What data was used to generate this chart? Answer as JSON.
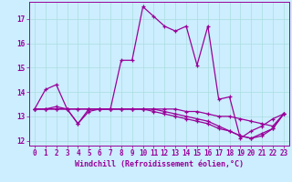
{
  "xlabel": "Windchill (Refroidissement éolien,°C)",
  "background_color": "#cceeff",
  "line_color": "#990099",
  "grid_color": "#aadddd",
  "xlim": [
    -0.5,
    23.5
  ],
  "ylim": [
    11.8,
    17.7
  ],
  "xticks": [
    0,
    1,
    2,
    3,
    4,
    5,
    6,
    7,
    8,
    9,
    10,
    11,
    12,
    13,
    14,
    15,
    16,
    17,
    18,
    19,
    20,
    21,
    22,
    23
  ],
  "yticks": [
    12,
    13,
    14,
    15,
    16,
    17
  ],
  "line1_x": [
    0,
    1,
    2,
    3,
    4,
    5,
    6,
    7,
    8,
    9,
    10,
    11,
    12,
    13,
    14,
    15,
    16,
    17,
    18,
    19,
    20,
    21,
    22,
    23
  ],
  "line1_y": [
    13.3,
    14.1,
    14.3,
    13.3,
    12.7,
    13.3,
    13.3,
    13.3,
    15.3,
    15.3,
    17.5,
    17.1,
    16.7,
    16.5,
    16.7,
    15.1,
    16.7,
    13.7,
    13.8,
    12.1,
    12.4,
    12.6,
    12.9,
    13.1
  ],
  "line2_x": [
    0,
    1,
    2,
    3,
    4,
    5,
    6,
    7,
    8,
    9,
    10,
    11,
    12,
    13,
    14,
    15,
    16,
    17,
    18,
    19,
    20,
    21,
    22,
    23
  ],
  "line2_y": [
    13.3,
    13.3,
    13.4,
    13.3,
    13.3,
    13.3,
    13.3,
    13.3,
    13.3,
    13.3,
    13.3,
    13.2,
    13.1,
    13.0,
    12.9,
    12.8,
    12.7,
    12.5,
    12.4,
    12.2,
    12.1,
    12.3,
    12.5,
    13.1
  ],
  "line3_x": [
    0,
    1,
    2,
    3,
    4,
    5,
    6,
    7,
    8,
    9,
    10,
    11,
    12,
    13,
    14,
    15,
    16,
    17,
    18,
    19,
    20,
    21,
    22,
    23
  ],
  "line3_y": [
    13.3,
    13.3,
    13.3,
    13.3,
    13.3,
    13.3,
    13.3,
    13.3,
    13.3,
    13.3,
    13.3,
    13.3,
    13.2,
    13.1,
    13.0,
    12.9,
    12.8,
    12.6,
    12.4,
    12.2,
    12.1,
    12.2,
    12.5,
    13.1
  ],
  "line4_x": [
    0,
    1,
    2,
    3,
    4,
    5,
    6,
    7,
    8,
    9,
    10,
    11,
    12,
    13,
    14,
    15,
    16,
    17,
    18,
    19,
    20,
    21,
    22,
    23
  ],
  "line4_y": [
    13.3,
    13.3,
    13.3,
    13.3,
    12.7,
    13.2,
    13.3,
    13.3,
    13.3,
    13.3,
    13.3,
    13.3,
    13.3,
    13.3,
    13.2,
    13.2,
    13.1,
    13.0,
    13.0,
    12.9,
    12.8,
    12.7,
    12.6,
    13.1
  ]
}
